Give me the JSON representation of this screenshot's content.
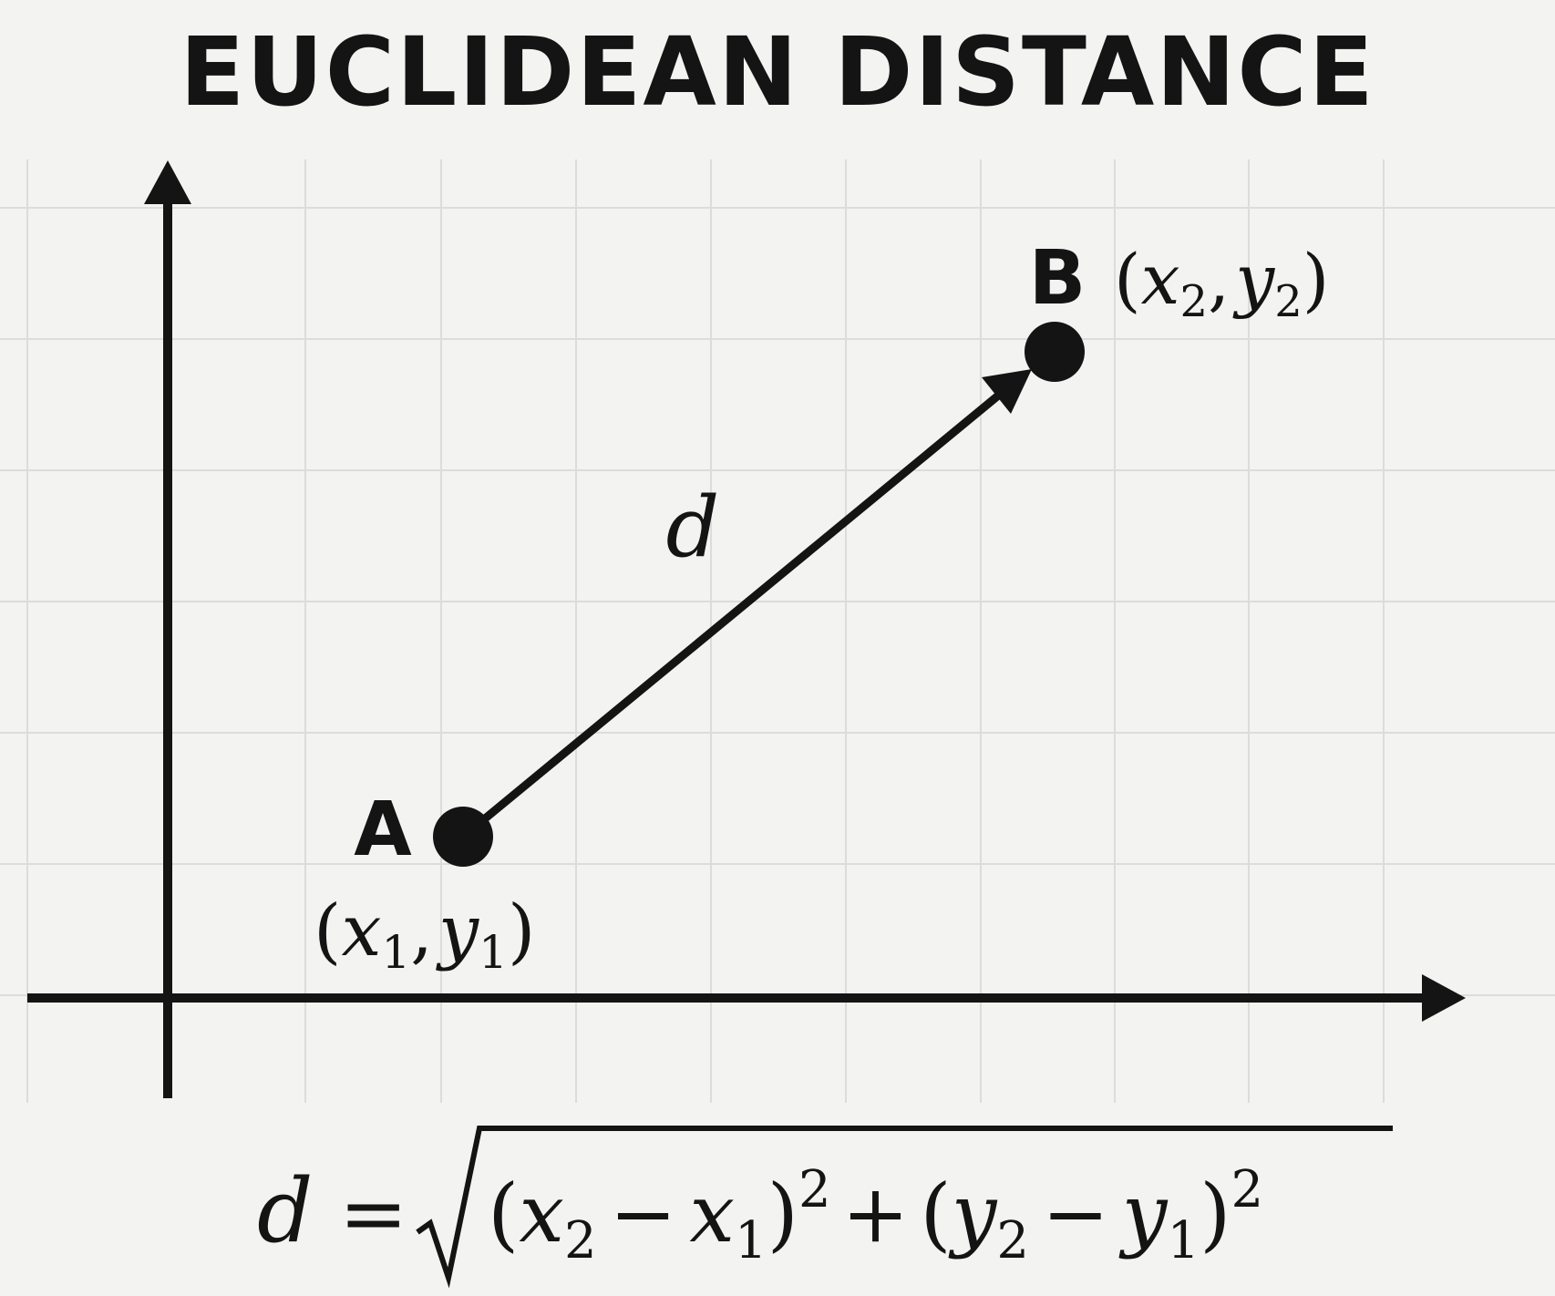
{
  "title": "EUCLIDEAN DISTANCE",
  "point_a": {
    "label": "A",
    "coord_open": "(",
    "coord_x": "x",
    "coord_x_sub": "1",
    "coord_sep": ",",
    "coord_y": "y",
    "coord_y_sub": "1",
    "coord_close": ")"
  },
  "point_b": {
    "label": "B",
    "coord_open": "(",
    "coord_x": "x",
    "coord_x_sub": "2",
    "coord_sep": ",",
    "coord_y": "y",
    "coord_y_sub": "2",
    "coord_close": ")"
  },
  "segment_label": "d",
  "formula": {
    "lhs": "d",
    "equals": "=",
    "open1": "(",
    "x2": "x",
    "x2_sub": "2",
    "minus1": "−",
    "x1": "x",
    "x1_sub": "1",
    "close1": ")",
    "exp1": "2",
    "plus": "+",
    "open2": "(",
    "y2": "y",
    "y2_sub": "2",
    "minus2": "−",
    "y1": "y",
    "y1_sub": "1",
    "close2": ")",
    "exp2": "2"
  },
  "colors": {
    "background": "#f3f3f1",
    "grid": "#dcdcda",
    "ink": "#141414"
  }
}
